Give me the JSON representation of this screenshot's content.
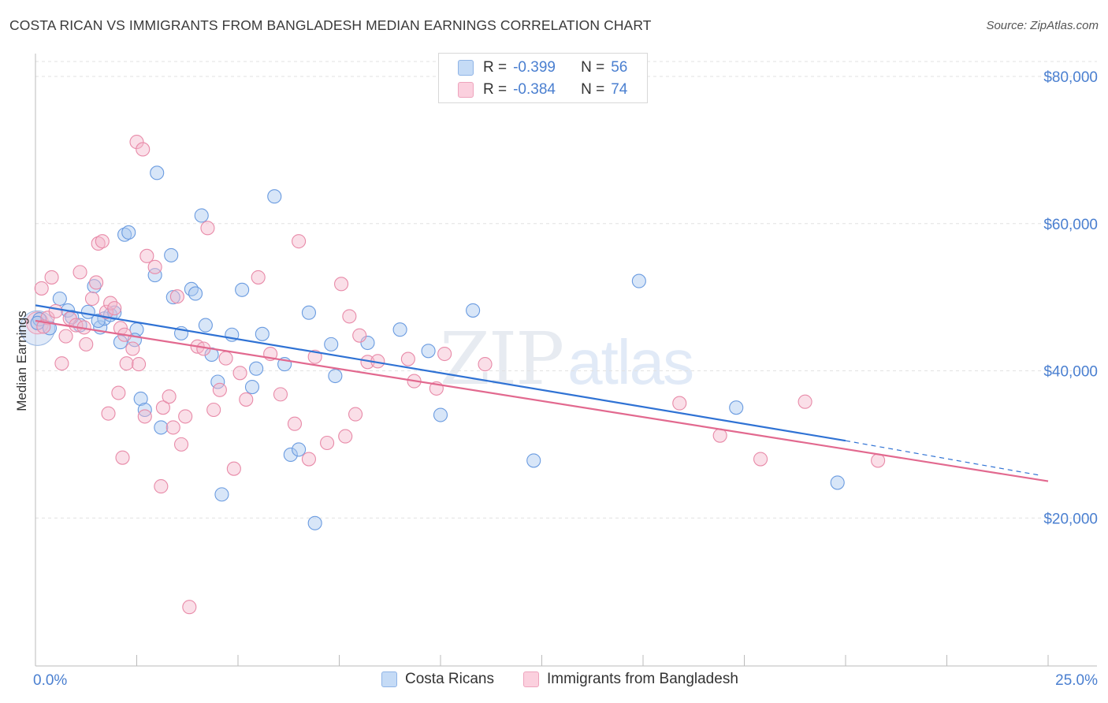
{
  "header": {
    "title": "COSTA RICAN VS IMMIGRANTS FROM BANGLADESH MEDIAN EARNINGS CORRELATION CHART",
    "source": "Source: ZipAtlas.com"
  },
  "watermark": {
    "zip": "ZIP",
    "atlas": "atlas"
  },
  "legend_top": {
    "rows": [
      {
        "r_label": "R =",
        "r_value": "-0.399",
        "n_label": "N =",
        "n_value": "56",
        "color": "#a8c8f0"
      },
      {
        "r_label": "R =",
        "r_value": "-0.384",
        "n_label": "N =",
        "n_value": "74",
        "color": "#f5b8cc"
      }
    ]
  },
  "legend_bottom": {
    "items": [
      {
        "label": "Costa Ricans",
        "color": "#a8c8f0"
      },
      {
        "label": "Immigrants from Bangladesh",
        "color": "#f5b8cc"
      }
    ]
  },
  "chart_data": {
    "type": "scatter",
    "title": "COSTA RICAN VS IMMIGRANTS FROM BANGLADESH MEDIAN EARNINGS CORRELATION CHART",
    "xlabel": "",
    "ylabel": "Median Earnings",
    "xlim": [
      0,
      25
    ],
    "ylim": [
      0,
      82000
    ],
    "x_tick_labels": [
      "0.0%",
      "25.0%"
    ],
    "y_ticks": [
      20000,
      40000,
      60000,
      80000
    ],
    "y_tick_labels": [
      "$20,000",
      "$40,000",
      "$60,000",
      "$80,000"
    ],
    "grid": true,
    "series": [
      {
        "name": "Costa Ricans",
        "color": "#6a9be0",
        "fill": "#a8c8f0",
        "trend": {
          "x": [
            0,
            20
          ],
          "y": [
            48900,
            30500
          ],
          "dash_to_x": 24.8,
          "dash_to_y": 25800,
          "color": "#2f72d4"
        },
        "points": [
          [
            0.1,
            47000
          ],
          [
            0.35,
            45800
          ],
          [
            0.6,
            49800
          ],
          [
            0.8,
            48200
          ],
          [
            0.9,
            47300
          ],
          [
            1.1,
            46200
          ],
          [
            1.3,
            48000
          ],
          [
            1.45,
            51500
          ],
          [
            1.6,
            45900
          ],
          [
            1.7,
            47100
          ],
          [
            1.85,
            47600
          ],
          [
            1.95,
            47900
          ],
          [
            2.1,
            43900
          ],
          [
            2.2,
            58500
          ],
          [
            2.3,
            58800
          ],
          [
            2.5,
            45600
          ],
          [
            2.6,
            36200
          ],
          [
            2.7,
            34700
          ],
          [
            2.95,
            53000
          ],
          [
            3.0,
            66900
          ],
          [
            3.1,
            32300
          ],
          [
            3.35,
            55700
          ],
          [
            3.6,
            45100
          ],
          [
            3.85,
            51100
          ],
          [
            3.95,
            50500
          ],
          [
            4.1,
            61100
          ],
          [
            4.2,
            46200
          ],
          [
            4.35,
            42200
          ],
          [
            4.5,
            38500
          ],
          [
            4.6,
            23200
          ],
          [
            4.85,
            44900
          ],
          [
            5.1,
            51000
          ],
          [
            5.35,
            37800
          ],
          [
            5.45,
            40300
          ],
          [
            5.6,
            45000
          ],
          [
            5.9,
            63700
          ],
          [
            6.15,
            40900
          ],
          [
            6.3,
            28600
          ],
          [
            6.5,
            29300
          ],
          [
            6.75,
            47900
          ],
          [
            6.9,
            19300
          ],
          [
            7.3,
            43600
          ],
          [
            7.4,
            39300
          ],
          [
            8.2,
            43800
          ],
          [
            9.0,
            45600
          ],
          [
            9.7,
            42700
          ],
          [
            10.0,
            34000
          ],
          [
            10.8,
            48200
          ],
          [
            12.3,
            27800
          ],
          [
            14.9,
            52200
          ],
          [
            17.3,
            35000
          ],
          [
            19.8,
            24800
          ],
          [
            0.05,
            46500
          ],
          [
            1.55,
            46800
          ],
          [
            2.45,
            44200
          ],
          [
            3.4,
            50000
          ]
        ]
      },
      {
        "name": "Immigrants from Bangladesh",
        "color": "#e88aa8",
        "fill": "#f5b8cc",
        "trend": {
          "x": [
            0,
            25
          ],
          "y": [
            46800,
            25000
          ],
          "color": "#e2698f"
        },
        "points": [
          [
            0.15,
            51200
          ],
          [
            0.3,
            47200
          ],
          [
            0.4,
            52700
          ],
          [
            0.5,
            48100
          ],
          [
            0.65,
            41000
          ],
          [
            0.75,
            44700
          ],
          [
            0.85,
            47100
          ],
          [
            1.0,
            46200
          ],
          [
            1.1,
            53400
          ],
          [
            1.25,
            43600
          ],
          [
            1.4,
            49800
          ],
          [
            1.5,
            52000
          ],
          [
            1.55,
            57300
          ],
          [
            1.65,
            57600
          ],
          [
            1.75,
            48000
          ],
          [
            1.8,
            34200
          ],
          [
            1.85,
            49200
          ],
          [
            1.95,
            48500
          ],
          [
            2.05,
            37000
          ],
          [
            2.1,
            45800
          ],
          [
            2.15,
            28200
          ],
          [
            2.25,
            41000
          ],
          [
            2.4,
            43000
          ],
          [
            2.5,
            71100
          ],
          [
            2.55,
            40900
          ],
          [
            2.65,
            70100
          ],
          [
            2.7,
            33800
          ],
          [
            2.75,
            55600
          ],
          [
            2.95,
            54100
          ],
          [
            3.1,
            24300
          ],
          [
            3.15,
            35000
          ],
          [
            3.3,
            36500
          ],
          [
            3.4,
            32300
          ],
          [
            3.5,
            50100
          ],
          [
            3.6,
            30000
          ],
          [
            3.7,
            33800
          ],
          [
            3.8,
            7900
          ],
          [
            4.0,
            43300
          ],
          [
            4.15,
            43000
          ],
          [
            4.25,
            59400
          ],
          [
            4.4,
            34700
          ],
          [
            4.55,
            37400
          ],
          [
            4.7,
            41700
          ],
          [
            4.9,
            26700
          ],
          [
            5.05,
            39700
          ],
          [
            5.2,
            36100
          ],
          [
            5.5,
            52700
          ],
          [
            5.8,
            42300
          ],
          [
            6.05,
            36800
          ],
          [
            6.4,
            32800
          ],
          [
            6.5,
            57600
          ],
          [
            6.75,
            28000
          ],
          [
            6.9,
            41900
          ],
          [
            7.2,
            30200
          ],
          [
            7.55,
            51800
          ],
          [
            7.65,
            31100
          ],
          [
            7.75,
            47400
          ],
          [
            7.9,
            34100
          ],
          [
            8.0,
            44800
          ],
          [
            8.2,
            41200
          ],
          [
            8.45,
            41300
          ],
          [
            9.2,
            41600
          ],
          [
            9.35,
            38600
          ],
          [
            9.9,
            37600
          ],
          [
            10.1,
            42300
          ],
          [
            11.1,
            40900
          ],
          [
            15.9,
            35600
          ],
          [
            16.9,
            31200
          ],
          [
            17.9,
            28000
          ],
          [
            19.0,
            35800
          ],
          [
            20.8,
            27800
          ],
          [
            0.2,
            46000
          ],
          [
            1.2,
            45900
          ],
          [
            2.2,
            44900
          ]
        ]
      }
    ]
  },
  "axis": {
    "x_left_label": "0.0%",
    "x_right_label": "25.0%"
  }
}
